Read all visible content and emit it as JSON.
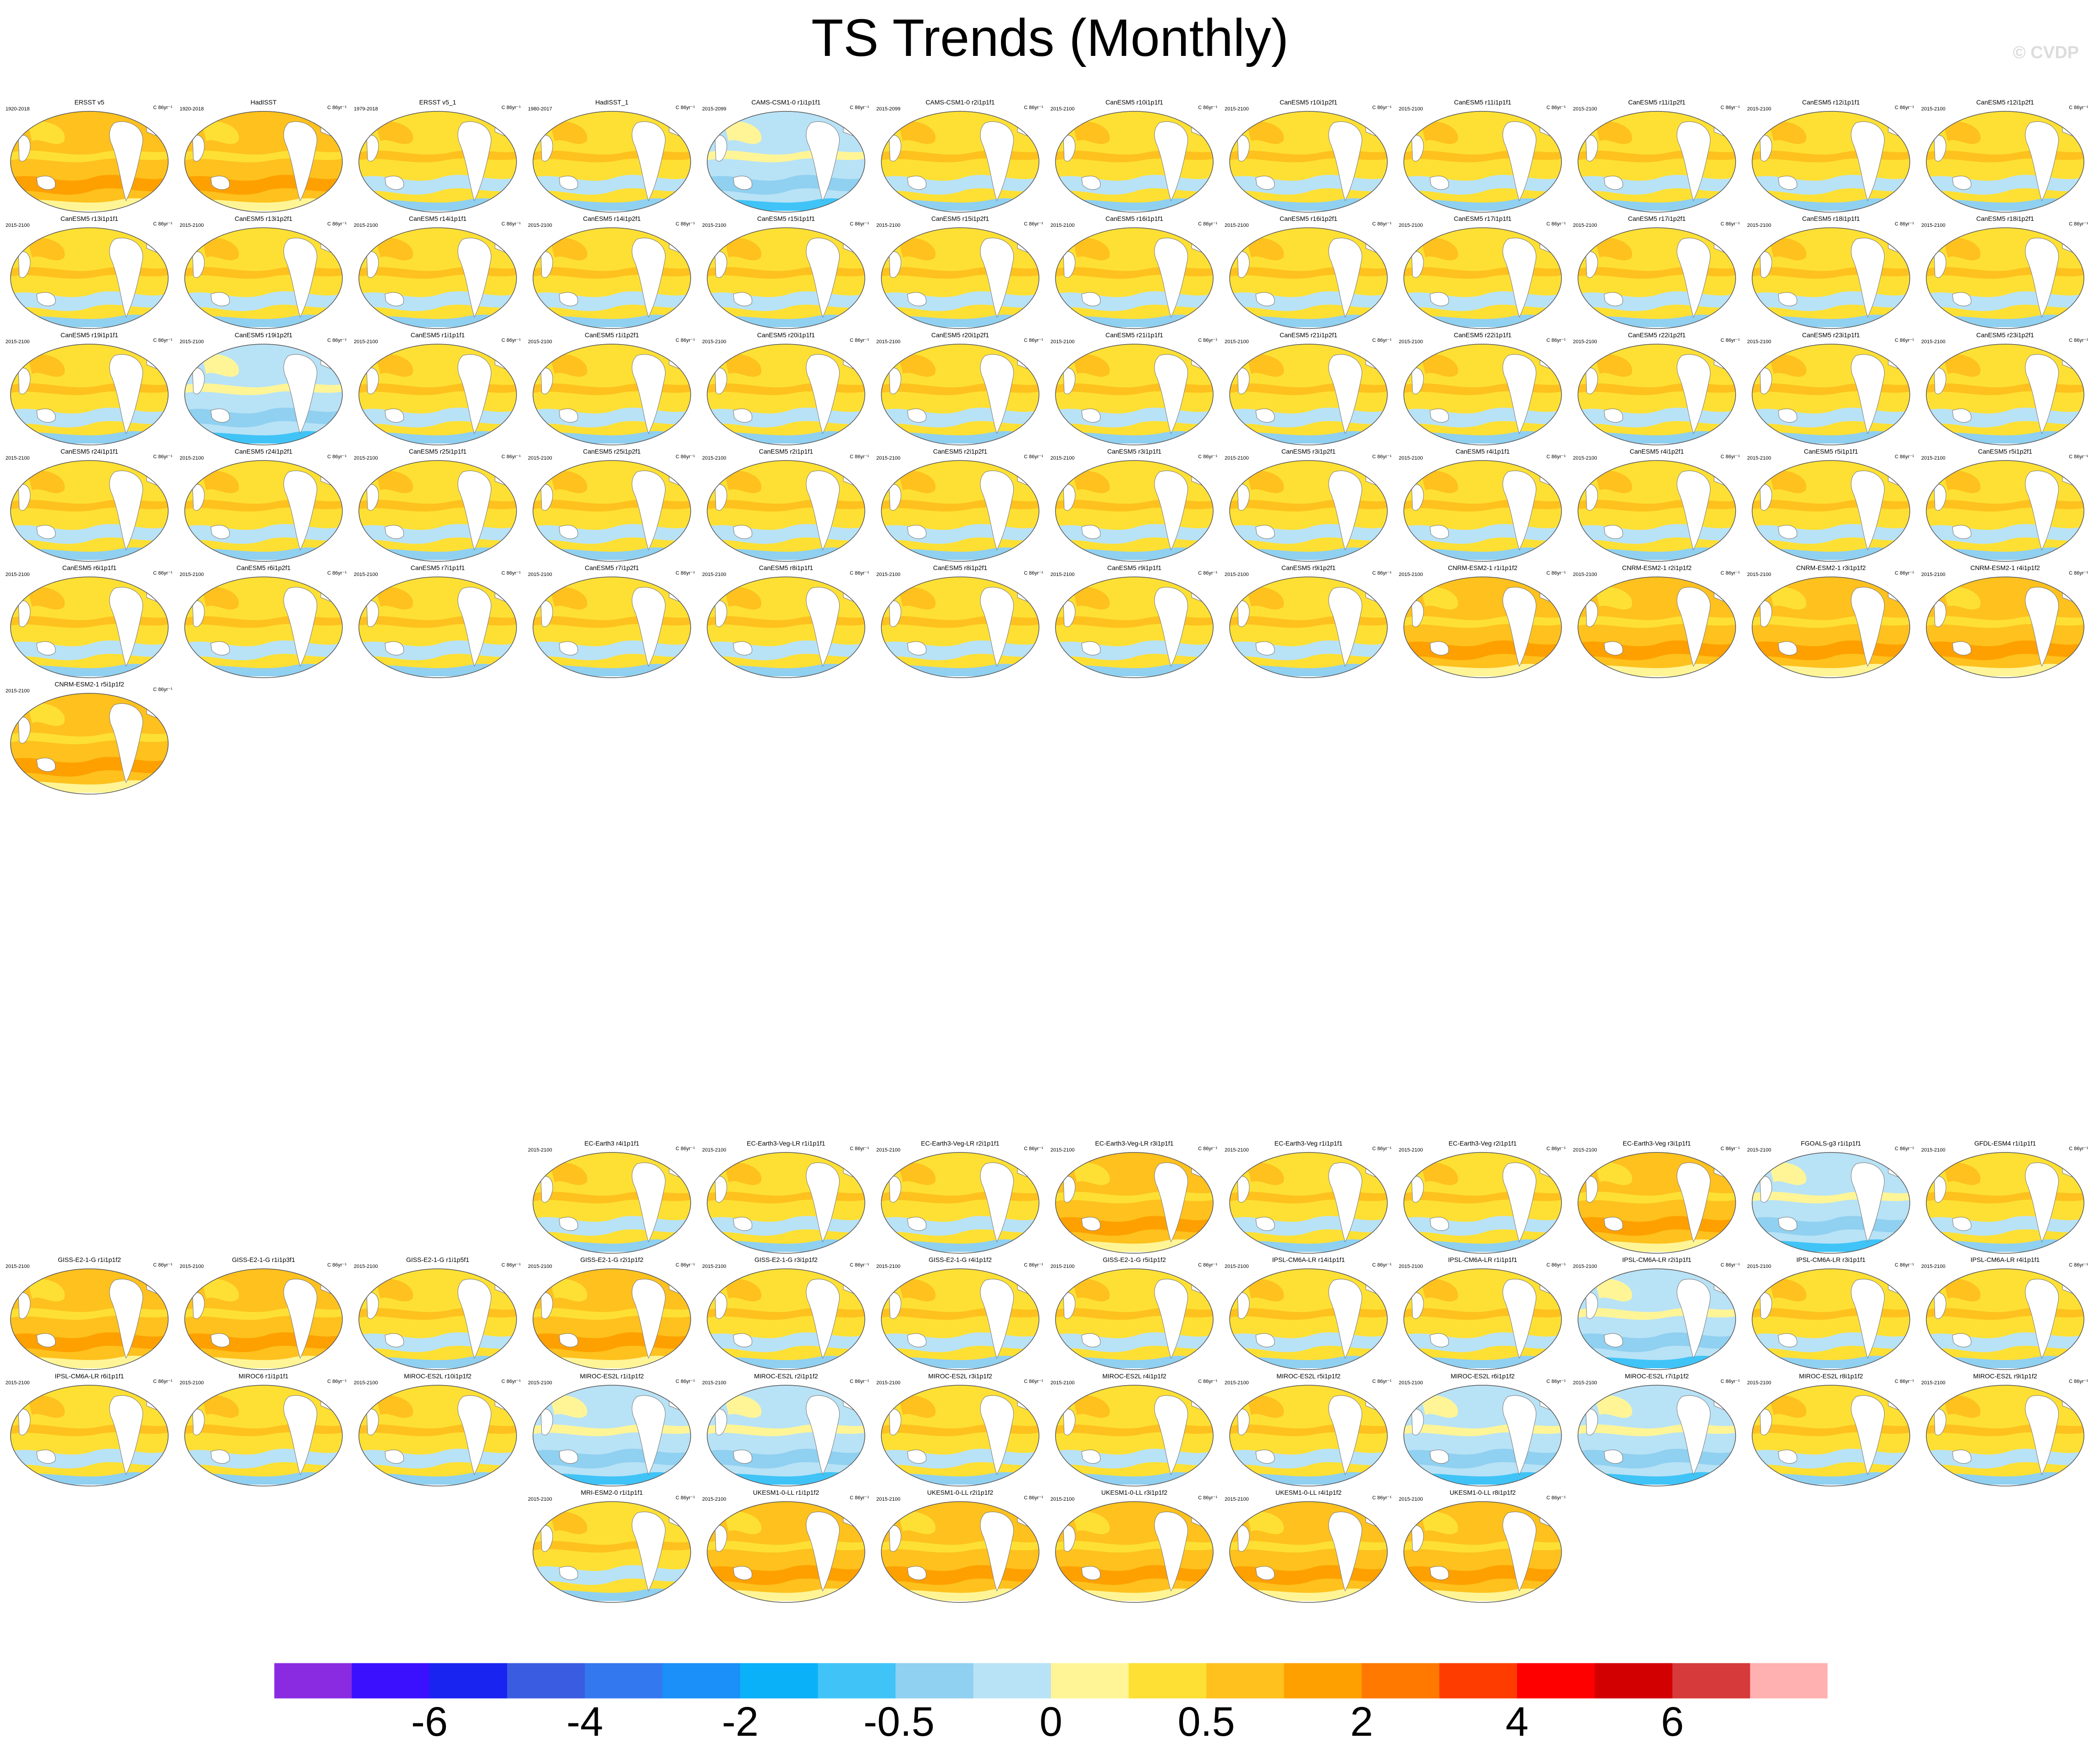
{
  "title": "TS Trends (Monthly)",
  "watermark": "© CVDP",
  "units": "C 86yr⁻¹",
  "colorbar": {
    "colors": [
      "#8a2be2",
      "#3a10ff",
      "#1a24f0",
      "#3a5ce0",
      "#3478f0",
      "#1a90f8",
      "#0ab0f8",
      "#40c4f8",
      "#90d0f0",
      "#b8e2f6",
      "#fff597",
      "#fee034",
      "#fec11e",
      "#fea000",
      "#ff7800",
      "#ff3c00",
      "#ff0000",
      "#d20000",
      "#d73a3a",
      "#ffb0b0"
    ],
    "labels": [
      "-6",
      "-4",
      "-2",
      "-0.5",
      "0",
      "0.5",
      "2",
      "4",
      "6"
    ]
  },
  "panels": [
    {
      "title": "ERSST v5",
      "years": "1920-2018",
      "style": "warm"
    },
    {
      "title": "HadISST",
      "years": "1920-2018",
      "style": "warm"
    },
    {
      "title": "ERSST v5_1",
      "years": "1979-2018",
      "style": "mixed"
    },
    {
      "title": "HadISST_1",
      "years": "1980-2017",
      "style": "mixed"
    },
    {
      "title": "CAMS-CSM1-0 r1i1p1f1",
      "years": "2015-2099",
      "style": "cool"
    },
    {
      "title": "CAMS-CSM1-0 r2i1p1f1",
      "years": "2015-2099",
      "style": "mixed"
    },
    {
      "title": "CanESM5 r10i1p1f1",
      "years": "2015-2100",
      "style": "mixed"
    },
    {
      "title": "CanESM5 r10i1p2f1",
      "years": "2015-2100",
      "style": "mixed"
    },
    {
      "title": "CanESM5 r11i1p1f1",
      "years": "2015-2100",
      "style": "mixed"
    },
    {
      "title": "CanESM5 r11i1p2f1",
      "years": "2015-2100",
      "style": "mixed"
    },
    {
      "title": "CanESM5 r12i1p1f1",
      "years": "2015-2100",
      "style": "mixed"
    },
    {
      "title": "CanESM5 r12i1p2f1",
      "years": "2015-2100",
      "style": "mixed"
    },
    {
      "title": "CanESM5 r13i1p1f1",
      "years": "2015-2100",
      "style": "mixed"
    },
    {
      "title": "CanESM5 r13i1p2f1",
      "years": "2015-2100",
      "style": "mixed"
    },
    {
      "title": "CanESM5 r14i1p1f1",
      "years": "2015-2100",
      "style": "mixed"
    },
    {
      "title": "CanESM5 r14i1p2f1",
      "years": "2015-2100",
      "style": "mixed"
    },
    {
      "title": "CanESM5 r15i1p1f1",
      "years": "2015-2100",
      "style": "mixed"
    },
    {
      "title": "CanESM5 r15i1p2f1",
      "years": "2015-2100",
      "style": "mixed"
    },
    {
      "title": "CanESM5 r16i1p1f1",
      "years": "2015-2100",
      "style": "mixed"
    },
    {
      "title": "CanESM5 r16i1p2f1",
      "years": "2015-2100",
      "style": "mixed"
    },
    {
      "title": "CanESM5 r17i1p1f1",
      "years": "2015-2100",
      "style": "mixed"
    },
    {
      "title": "CanESM5 r17i1p2f1",
      "years": "2015-2100",
      "style": "mixed"
    },
    {
      "title": "CanESM5 r18i1p1f1",
      "years": "2015-2100",
      "style": "mixed"
    },
    {
      "title": "CanESM5 r18i1p2f1",
      "years": "2015-2100",
      "style": "mixed"
    },
    {
      "title": "CanESM5 r19i1p1f1",
      "years": "2015-2100",
      "style": "mixed"
    },
    {
      "title": "CanESM5 r19i1p2f1",
      "years": "2015-2100",
      "style": "cool"
    },
    {
      "title": "CanESM5 r1i1p1f1",
      "years": "2015-2100",
      "style": "mixed"
    },
    {
      "title": "CanESM5 r1i1p2f1",
      "years": "2015-2100",
      "style": "mixed"
    },
    {
      "title": "CanESM5 r20i1p1f1",
      "years": "2015-2100",
      "style": "mixed"
    },
    {
      "title": "CanESM5 r20i1p2f1",
      "years": "2015-2100",
      "style": "mixed"
    },
    {
      "title": "CanESM5 r21i1p1f1",
      "years": "2015-2100",
      "style": "mixed"
    },
    {
      "title": "CanESM5 r21i1p2f1",
      "years": "2015-2100",
      "style": "mixed"
    },
    {
      "title": "CanESM5 r22i1p1f1",
      "years": "2015-2100",
      "style": "mixed"
    },
    {
      "title": "CanESM5 r22i1p2f1",
      "years": "2015-2100",
      "style": "mixed"
    },
    {
      "title": "CanESM5 r23i1p1f1",
      "years": "2015-2100",
      "style": "mixed"
    },
    {
      "title": "CanESM5 r23i1p2f1",
      "years": "2015-2100",
      "style": "mixed"
    },
    {
      "title": "CanESM5 r24i1p1f1",
      "years": "2015-2100",
      "style": "mixed"
    },
    {
      "title": "CanESM5 r24i1p2f1",
      "years": "2015-2100",
      "style": "mixed"
    },
    {
      "title": "CanESM5 r25i1p1f1",
      "years": "2015-2100",
      "style": "mixed"
    },
    {
      "title": "CanESM5 r25i1p2f1",
      "years": "2015-2100",
      "style": "mixed"
    },
    {
      "title": "CanESM5 r2i1p1f1",
      "years": "2015-2100",
      "style": "mixed"
    },
    {
      "title": "CanESM5 r2i1p2f1",
      "years": "2015-2100",
      "style": "mixed"
    },
    {
      "title": "CanESM5 r3i1p1f1",
      "years": "2015-2100",
      "style": "mixed"
    },
    {
      "title": "CanESM5 r3i1p2f1",
      "years": "2015-2100",
      "style": "mixed"
    },
    {
      "title": "CanESM5 r4i1p1f1",
      "years": "2015-2100",
      "style": "mixed"
    },
    {
      "title": "CanESM5 r4i1p2f1",
      "years": "2015-2100",
      "style": "mixed"
    },
    {
      "title": "CanESM5 r5i1p1f1",
      "years": "2015-2100",
      "style": "mixed"
    },
    {
      "title": "CanESM5 r5i1p2f1",
      "years": "2015-2100",
      "style": "mixed"
    },
    {
      "title": "CanESM5 r6i1p1f1",
      "years": "2015-2100",
      "style": "mixed"
    },
    {
      "title": "CanESM5 r6i1p2f1",
      "years": "2015-2100",
      "style": "mixed"
    },
    {
      "title": "CanESM5 r7i1p1f1",
      "years": "2015-2100",
      "style": "mixed"
    },
    {
      "title": "CanESM5 r7i1p2f1",
      "years": "2015-2100",
      "style": "mixed"
    },
    {
      "title": "CanESM5 r8i1p1f1",
      "years": "2015-2100",
      "style": "mixed"
    },
    {
      "title": "CanESM5 r8i1p2f1",
      "years": "2015-2100",
      "style": "mixed"
    },
    {
      "title": "CanESM5 r9i1p1f1",
      "years": "2015-2100",
      "style": "mixed"
    },
    {
      "title": "CanESM5 r9i1p2f1",
      "years": "2015-2100",
      "style": "mixed"
    },
    {
      "title": "CNRM-ESM2-1 r1i1p1f2",
      "years": "2015-2100",
      "style": "warm"
    },
    {
      "title": "CNRM-ESM2-1 r2i1p1f2",
      "years": "2015-2100",
      "style": "warm"
    },
    {
      "title": "CNRM-ESM2-1 r3i1p1f2",
      "years": "2015-2100",
      "style": "warm"
    },
    {
      "title": "CNRM-ESM2-1 r4i1p1f2",
      "years": "2015-2100",
      "style": "warm"
    },
    {
      "title": "CNRM-ESM2-1 r5i1p1f2",
      "years": "2015-2100",
      "style": "warm"
    },
    {
      "title": "EC-Earth3 r4i1p1f1",
      "years": "2015-2100",
      "style": "mixed"
    },
    {
      "title": "EC-Earth3-Veg-LR r1i1p1f1",
      "years": "2015-2100",
      "style": "mixed"
    },
    {
      "title": "EC-Earth3-Veg-LR r2i1p1f1",
      "years": "2015-2100",
      "style": "mixed"
    },
    {
      "title": "EC-Earth3-Veg-LR r3i1p1f1",
      "years": "2015-2100",
      "style": "warm"
    },
    {
      "title": "EC-Earth3-Veg r1i1p1f1",
      "years": "2015-2100",
      "style": "mixed"
    },
    {
      "title": "EC-Earth3-Veg r2i1p1f1",
      "years": "2015-2100",
      "style": "mixed"
    },
    {
      "title": "EC-Earth3-Veg r3i1p1f1",
      "years": "2015-2100",
      "style": "warm"
    },
    {
      "title": "FGOALS-g3 r1i1p1f1",
      "years": "2015-2100",
      "style": "cool"
    },
    {
      "title": "GFDL-ESM4 r1i1p1f1",
      "years": "2015-2100",
      "style": "mixed"
    },
    {
      "title": "GISS-E2-1-G r1i1p1f2",
      "years": "2015-2100",
      "style": "warm"
    },
    {
      "title": "GISS-E2-1-G r1i1p3f1",
      "years": "2015-2100",
      "style": "warm"
    },
    {
      "title": "GISS-E2-1-G r1i1p5f1",
      "years": "2015-2100",
      "style": "mixed"
    },
    {
      "title": "GISS-E2-1-G r2i1p1f2",
      "years": "2015-2100",
      "style": "warm"
    },
    {
      "title": "GISS-E2-1-G r3i1p1f2",
      "years": "2015-2100",
      "style": "mixed"
    },
    {
      "title": "GISS-E2-1-G r4i1p1f2",
      "years": "2015-2100",
      "style": "mixed"
    },
    {
      "title": "GISS-E2-1-G r5i1p1f2",
      "years": "2015-2100",
      "style": "mixed"
    },
    {
      "title": "IPSL-CM6A-LR r14i1p1f1",
      "years": "2015-2100",
      "style": "mixed"
    },
    {
      "title": "IPSL-CM6A-LR r1i1p1f1",
      "years": "2015-2100",
      "style": "mixed"
    },
    {
      "title": "IPSL-CM6A-LR r2i1p1f1",
      "years": "2015-2100",
      "style": "cool"
    },
    {
      "title": "IPSL-CM6A-LR r3i1p1f1",
      "years": "2015-2100",
      "style": "mixed"
    },
    {
      "title": "IPSL-CM6A-LR r4i1p1f1",
      "years": "2015-2100",
      "style": "mixed"
    },
    {
      "title": "IPSL-CM6A-LR r6i1p1f1",
      "years": "2015-2100",
      "style": "mixed"
    },
    {
      "title": "MIROC6 r1i1p1f1",
      "years": "2015-2100",
      "style": "mixed"
    },
    {
      "title": "MIROC-ES2L r10i1p1f2",
      "years": "2015-2100",
      "style": "mixed"
    },
    {
      "title": "MIROC-ES2L r1i1p1f2",
      "years": "2015-2100",
      "style": "cool"
    },
    {
      "title": "MIROC-ES2L r2i1p1f2",
      "years": "2015-2100",
      "style": "cool"
    },
    {
      "title": "MIROC-ES2L r3i1p1f2",
      "years": "2015-2100",
      "style": "mixed"
    },
    {
      "title": "MIROC-ES2L r4i1p1f2",
      "years": "2015-2100",
      "style": "mixed"
    },
    {
      "title": "MIROC-ES2L r5i1p1f2",
      "years": "2015-2100",
      "style": "mixed"
    },
    {
      "title": "MIROC-ES2L r6i1p1f2",
      "years": "2015-2100",
      "style": "cool"
    },
    {
      "title": "MIROC-ES2L r7i1p1f2",
      "years": "2015-2100",
      "style": "cool"
    },
    {
      "title": "MIROC-ES2L r8i1p1f2",
      "years": "2015-2100",
      "style": "mixed"
    },
    {
      "title": "MIROC-ES2L r9i1p1f2",
      "years": "2015-2100",
      "style": "mixed"
    },
    {
      "title": "MRI-ESM2-0 r1i1p1f1",
      "years": "2015-2100",
      "style": "mixed"
    },
    {
      "title": "UKESM1-0-LL r1i1p1f2",
      "years": "2015-2100",
      "style": "warm"
    },
    {
      "title": "UKESM1-0-LL r2i1p1f2",
      "years": "2015-2100",
      "style": "warm"
    },
    {
      "title": "UKESM1-0-LL r3i1p1f2",
      "years": "2015-2100",
      "style": "warm"
    },
    {
      "title": "UKESM1-0-LL r4i1p1f2",
      "years": "2015-2100",
      "style": "warm"
    },
    {
      "title": "UKESM1-0-LL r8i1p1f2",
      "years": "2015-2100",
      "style": "warm"
    }
  ]
}
